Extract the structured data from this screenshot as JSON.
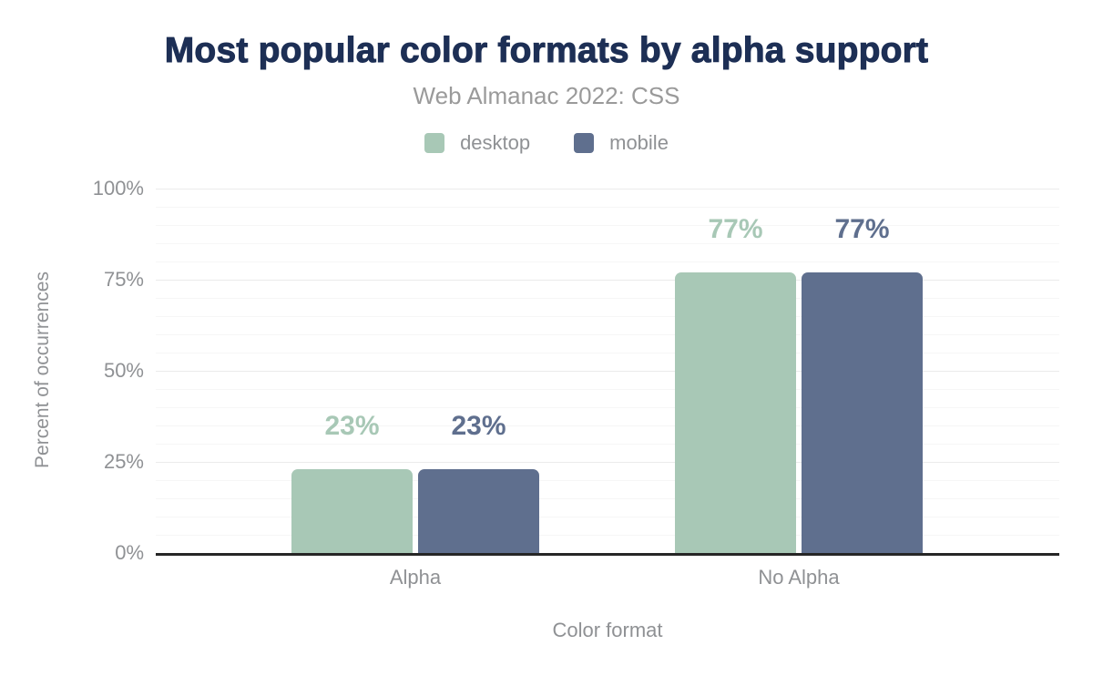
{
  "header": {
    "title": "Most popular color formats by alpha support",
    "subtitle": "Web Almanac 2022: CSS"
  },
  "legend": {
    "position": "top",
    "items": [
      {
        "label": "desktop",
        "color": "#a8c8b6"
      },
      {
        "label": "mobile",
        "color": "#5f6f8e"
      }
    ]
  },
  "chart_data": {
    "type": "bar",
    "title": "Most popular color formats by alpha support",
    "subtitle": "Web Almanac 2022: CSS",
    "categories": [
      "Alpha",
      "No Alpha"
    ],
    "series": [
      {
        "name": "desktop",
        "color": "#a8c8b6",
        "values": [
          23,
          77
        ],
        "data_labels": [
          "23%",
          "77%"
        ]
      },
      {
        "name": "mobile",
        "color": "#5f6f8e",
        "values": [
          23,
          77
        ],
        "data_labels": [
          "23%",
          "77%"
        ]
      }
    ],
    "xlabel": "Color format",
    "ylabel": "Percent of occurrences",
    "ylim": [
      0,
      100
    ],
    "yticks": [
      {
        "value": 0,
        "label": "0%"
      },
      {
        "value": 25,
        "label": "25%"
      },
      {
        "value": 50,
        "label": "50%"
      },
      {
        "value": 75,
        "label": "75%"
      },
      {
        "value": 100,
        "label": "100%"
      }
    ],
    "grid": {
      "visible": true,
      "minor_step": 5,
      "major_step": 25
    },
    "legend_position": "top"
  },
  "colors": {
    "background": "#ffffff",
    "title": "#1d2f55",
    "subtitle": "#9a9a9a",
    "axis_text": "#8f9194",
    "grid_minor": "#f6f6f6",
    "grid_major": "#ebebeb",
    "axis_line": "#262626"
  }
}
